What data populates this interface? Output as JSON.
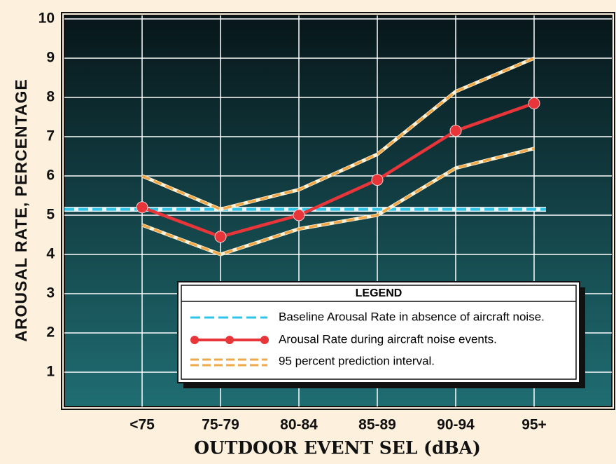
{
  "chart_data": {
    "type": "line",
    "y_label": "AROUSAL RATE, PERCENTAGE",
    "x_label": "OUTDOOR EVENT SEL (dBA)",
    "categories": [
      "<75",
      "75-79",
      "80-84",
      "85-89",
      "90-94",
      "95+"
    ],
    "ylim": [
      0,
      10
    ],
    "yticks": [
      1,
      2,
      3,
      4,
      5,
      6,
      7,
      8,
      9,
      10
    ],
    "grid": true,
    "legend_title": "LEGEND",
    "baseline": {
      "name": "Baseline Arousal Rate in absence of aircraft noise.",
      "color": "#2fc4e8",
      "value": 5.15
    },
    "series": [
      {
        "name": "Arousal Rate during aircraft noise events.",
        "color": "#e8353a",
        "values": [
          5.2,
          4.45,
          5.0,
          5.9,
          7.15,
          7.85
        ]
      }
    ],
    "interval": {
      "name": "95 percent prediction interval.",
      "color": "#f0a848",
      "upper": [
        6.0,
        5.15,
        5.65,
        6.55,
        8.15,
        9.0
      ],
      "lower": [
        4.75,
        4.0,
        4.65,
        5.0,
        6.2,
        6.7
      ]
    }
  }
}
